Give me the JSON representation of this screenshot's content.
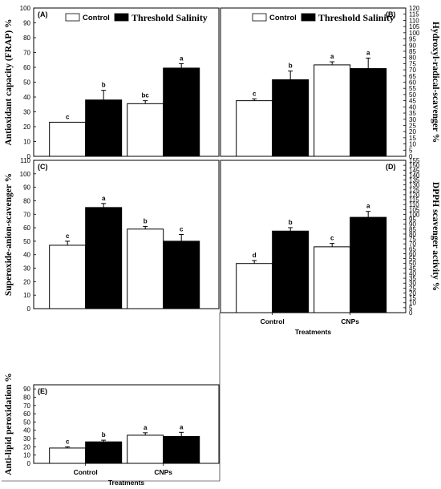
{
  "colors": {
    "control": "#ffffff",
    "threshold": "#000000",
    "stroke": "#000000"
  },
  "xlabel": "Treatments",
  "legend": {
    "series": [
      "Control",
      "Threshold Salinity"
    ]
  },
  "chart_data": [
    {
      "panel": "(A)",
      "type": "bar",
      "ylabel": "Antioxidant capacity (FRAP) %",
      "ylim": [
        0,
        100
      ],
      "ytick_step": 10,
      "axis_side": "left",
      "legend_shown": true,
      "categories": [
        "Control",
        "CNPs"
      ],
      "show_categories": false,
      "show_xlabel": false,
      "series": [
        {
          "name": "Control",
          "values": [
            23,
            35.5
          ],
          "errors": [
            0,
            2
          ],
          "letters": [
            "c",
            "bc"
          ]
        },
        {
          "name": "Threshold Salinity",
          "values": [
            38,
            59.5
          ],
          "errors": [
            6.5,
            3
          ],
          "letters": [
            "b",
            "a"
          ]
        }
      ]
    },
    {
      "panel": "(B)",
      "type": "bar",
      "ylabel": "Hydroxyl-radical-scavenger %",
      "ylim": [
        0,
        120
      ],
      "ytick_step": 5,
      "axis_side": "right",
      "legend_shown": true,
      "categories": [
        "Control",
        "CNPs"
      ],
      "show_categories": false,
      "show_xlabel": false,
      "series": [
        {
          "name": "Control",
          "values": [
            45,
            74
          ],
          "errors": [
            1.5,
            2.5
          ],
          "letters": [
            "c",
            "a"
          ]
        },
        {
          "name": "Threshold Salinity",
          "values": [
            62,
            71
          ],
          "errors": [
            7,
            8.5
          ],
          "letters": [
            "b",
            "a"
          ]
        }
      ]
    },
    {
      "panel": "(C)",
      "type": "bar",
      "ylabel": "Superoxide-anion-scavenger %",
      "ylim": [
        0,
        110
      ],
      "ytick_step": 10,
      "axis_side": "left",
      "legend_shown": false,
      "categories": [
        "Control",
        "CNPs"
      ],
      "show_categories": false,
      "show_xlabel": false,
      "series": [
        {
          "name": "Control",
          "values": [
            47,
            59
          ],
          "errors": [
            3,
            2
          ],
          "letters": [
            "c",
            "b"
          ]
        },
        {
          "name": "Threshold Salinity",
          "values": [
            75,
            50
          ],
          "errors": [
            3,
            5
          ],
          "letters": [
            "a",
            "c"
          ]
        }
      ]
    },
    {
      "panel": "(D)",
      "type": "bar",
      "ylabel": "DPPH scavenger activity  %",
      "ylim": [
        0,
        155
      ],
      "ytick_step": 5,
      "axis_side": "right",
      "legend_shown": false,
      "categories": [
        "Control",
        "CNPs"
      ],
      "show_categories": true,
      "show_xlabel": true,
      "series": [
        {
          "name": "Control",
          "values": [
            50,
            67
          ],
          "errors": [
            3,
            3.5
          ],
          "letters": [
            "d",
            "c"
          ]
        },
        {
          "name": "Threshold Salinity",
          "values": [
            83,
            97
          ],
          "errors": [
            3.5,
            6
          ],
          "letters": [
            "b",
            "a"
          ]
        }
      ]
    },
    {
      "panel": "(E)",
      "type": "bar",
      "ylabel": "Anti-lipid peroxidation %",
      "ylim": [
        0,
        95
      ],
      "ytick_step": 10,
      "axis_side": "left",
      "legend_shown": false,
      "categories": [
        "Control",
        "CNPs"
      ],
      "show_categories": true,
      "show_xlabel": true,
      "series": [
        {
          "name": "Control",
          "values": [
            18.5,
            34
          ],
          "errors": [
            1.5,
            3
          ],
          "letters": [
            "c",
            "a"
          ]
        },
        {
          "name": "Threshold Salinity",
          "values": [
            26,
            32.5
          ],
          "errors": [
            2,
            5
          ],
          "letters": [
            "b",
            "a"
          ]
        }
      ]
    }
  ]
}
